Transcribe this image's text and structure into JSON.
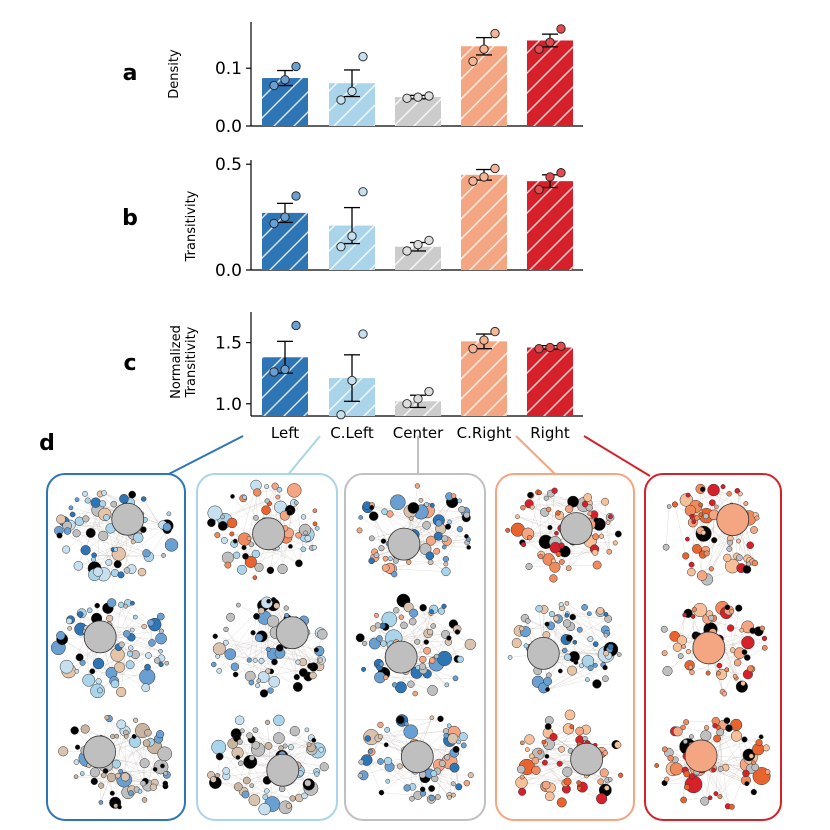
{
  "chart_data": [
    {
      "type": "bar",
      "panel": "a",
      "ylabel": "Density",
      "categories": [
        "Left",
        "C.Left",
        "Center",
        "C.Right",
        "Right"
      ],
      "values": [
        0.083,
        0.074,
        0.05,
        0.138,
        0.148
      ],
      "errors": [
        0.013,
        0.023,
        0.003,
        0.015,
        0.011
      ],
      "points": [
        [
          0.07,
          0.08,
          0.103
        ],
        [
          0.045,
          0.06,
          0.12
        ],
        [
          0.048,
          0.05,
          0.052
        ],
        [
          0.112,
          0.133,
          0.16
        ],
        [
          0.133,
          0.145,
          0.168
        ]
      ],
      "ylim": [
        0,
        0.18
      ],
      "yticks": [
        0.0,
        0.1
      ],
      "ytick_labels": [
        "0.0",
        "0.1"
      ]
    },
    {
      "type": "bar",
      "panel": "b",
      "ylabel": "Transitivity",
      "categories": [
        "Left",
        "C.Left",
        "Center",
        "C.Right",
        "Right"
      ],
      "values": [
        0.27,
        0.21,
        0.11,
        0.45,
        0.42
      ],
      "errors": [
        0.045,
        0.085,
        0.02,
        0.025,
        0.03
      ],
      "points": [
        [
          0.22,
          0.25,
          0.35
        ],
        [
          0.11,
          0.16,
          0.37
        ],
        [
          0.09,
          0.12,
          0.14
        ],
        [
          0.42,
          0.44,
          0.48
        ],
        [
          0.38,
          0.44,
          0.46
        ]
      ],
      "ylim": [
        0,
        0.52
      ],
      "yticks": [
        0.0,
        0.5
      ],
      "ytick_labels": [
        "0.0",
        "0.5"
      ]
    },
    {
      "type": "bar",
      "panel": "c",
      "ylabel": "Normalized Transitivity",
      "ylabel_lines": [
        "Normalized",
        "Transitivity"
      ],
      "categories": [
        "Left",
        "C.Left",
        "Center",
        "C.Right",
        "Right"
      ],
      "values": [
        1.38,
        1.21,
        1.02,
        1.51,
        1.46
      ],
      "errors": [
        0.13,
        0.19,
        0.05,
        0.06,
        0.015
      ],
      "points": [
        [
          1.26,
          1.28,
          1.64
        ],
        [
          0.91,
          1.19,
          1.57
        ],
        [
          1.0,
          1.04,
          1.1
        ],
        [
          1.45,
          1.52,
          1.59
        ],
        [
          1.45,
          1.46,
          1.47
        ]
      ],
      "ylim": [
        0.9,
        1.75
      ],
      "yticks": [
        1.0,
        1.5
      ],
      "ytick_labels": [
        "1.0",
        "1.5"
      ]
    }
  ],
  "group_colors": [
    "#2e75b6",
    "#a9d4ea",
    "#cccccc",
    "#f4a582",
    "#d6202a"
  ],
  "point_colors": [
    "#6a9fd1",
    "#c6e0ef",
    "#dddddd",
    "#f6b596",
    "#e34a4e"
  ],
  "panel_d": {
    "label": "d",
    "boxes": [
      {
        "name": "Left",
        "frame_color": "#2e75b6"
      },
      {
        "name": "C.Left",
        "frame_color": "#a9d4ea"
      },
      {
        "name": "Center",
        "frame_color": "#c0c0c0"
      },
      {
        "name": "C.Right",
        "frame_color": "#f4a582"
      },
      {
        "name": "Right",
        "frame_color": "#d6202a"
      }
    ],
    "networks": [
      [
        "left",
        "left",
        "mixed"
      ],
      [
        "cleft",
        "mixed-black",
        "mixed"
      ],
      [
        "center",
        "center",
        "center"
      ],
      [
        "cright",
        "left",
        "cright"
      ],
      [
        "right",
        "right",
        "right"
      ]
    ],
    "palettes": {
      "left": [
        "#2e75b6",
        "#6a9fd1",
        "#a9d4ea",
        "#c6e0ef",
        "#bfbfbf",
        "#e6c4a8",
        "#000000"
      ],
      "cleft": [
        "#a9d4ea",
        "#c6e0ef",
        "#f4a582",
        "#f08a5d",
        "#e8632e",
        "#000000",
        "#bfbfbf"
      ],
      "mixed": [
        "#a9d4ea",
        "#c6e0ef",
        "#d9c2ae",
        "#c9b4a0",
        "#bfbfbf",
        "#6a9fd1",
        "#000000"
      ],
      "mixed-black": [
        "#000000",
        "#000000",
        "#bfbfbf",
        "#c6e0ef",
        "#d9c2ae",
        "#6a9fd1"
      ],
      "center": [
        "#bfbfbf",
        "#000000",
        "#a9d4ea",
        "#6a9fd1",
        "#d9c2ae",
        "#f4a582",
        "#2e75b6"
      ],
      "cright": [
        "#f4a582",
        "#f08a5d",
        "#e8632e",
        "#d6202a",
        "#000000",
        "#bfbfbf",
        "#f6c09a"
      ],
      "right": [
        "#d6202a",
        "#e8632e",
        "#f4a582",
        "#f08a5d",
        "#000000",
        "#bfbfbf",
        "#f6c09a"
      ]
    }
  }
}
